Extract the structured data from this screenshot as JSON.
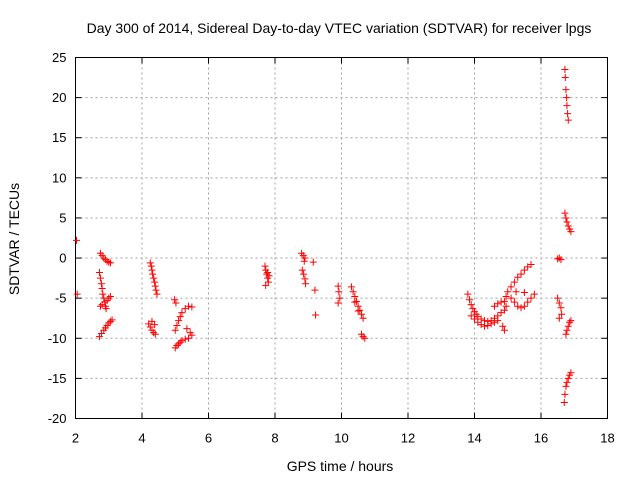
{
  "chart_data": {
    "type": "scatter",
    "title": "Day 300 of 2014, Sidereal Day-to-day VTEC variation (SDTVAR) for receiver lpgs",
    "xlabel": "GPS time / hours",
    "ylabel": "SDTVAR / TECUs",
    "xlim": [
      2,
      18
    ],
    "ylim": [
      -20,
      25
    ],
    "xticks": [
      2,
      4,
      6,
      8,
      10,
      12,
      14,
      16,
      18
    ],
    "yticks": [
      -20,
      -15,
      -10,
      -5,
      0,
      5,
      10,
      15,
      20,
      25
    ],
    "grid": true,
    "marker": "+",
    "marker_color": "#ff0000",
    "series": [
      {
        "name": "SDTVAR",
        "points": [
          [
            2.03,
            2.2
          ],
          [
            2.05,
            -4.5
          ],
          [
            2.75,
            0.6
          ],
          [
            2.8,
            0.3
          ],
          [
            2.85,
            0.0
          ],
          [
            2.9,
            -0.2
          ],
          [
            2.95,
            -0.4
          ],
          [
            3.0,
            -0.5
          ],
          [
            3.05,
            -0.6
          ],
          [
            2.72,
            -1.8
          ],
          [
            2.75,
            -2.5
          ],
          [
            2.78,
            -3.2
          ],
          [
            2.8,
            -3.8
          ],
          [
            2.82,
            -4.5
          ],
          [
            2.85,
            -5.0
          ],
          [
            2.88,
            -5.5
          ],
          [
            2.9,
            -6.0
          ],
          [
            2.92,
            -6.3
          ],
          [
            2.75,
            -6.0
          ],
          [
            2.8,
            -5.8
          ],
          [
            2.95,
            -5.3
          ],
          [
            3.0,
            -5.0
          ],
          [
            3.05,
            -4.8
          ],
          [
            2.72,
            -9.8
          ],
          [
            2.78,
            -9.4
          ],
          [
            2.85,
            -9.0
          ],
          [
            2.9,
            -8.7
          ],
          [
            2.95,
            -8.4
          ],
          [
            3.0,
            -8.1
          ],
          [
            3.05,
            -7.9
          ],
          [
            3.1,
            -7.7
          ],
          [
            4.25,
            -0.6
          ],
          [
            4.28,
            -1.0
          ],
          [
            4.3,
            -1.5
          ],
          [
            4.32,
            -2.0
          ],
          [
            4.35,
            -2.5
          ],
          [
            4.38,
            -3.0
          ],
          [
            4.4,
            -3.5
          ],
          [
            4.42,
            -4.0
          ],
          [
            4.45,
            -4.5
          ],
          [
            4.2,
            -8.2
          ],
          [
            4.25,
            -8.6
          ],
          [
            4.3,
            -9.0
          ],
          [
            4.35,
            -9.3
          ],
          [
            4.4,
            -9.5
          ],
          [
            4.3,
            -7.9
          ],
          [
            4.38,
            -8.3
          ],
          [
            4.98,
            -5.2
          ],
          [
            5.02,
            -5.6
          ],
          [
            5.0,
            -11.2
          ],
          [
            5.05,
            -10.9
          ],
          [
            5.1,
            -10.7
          ],
          [
            5.15,
            -10.5
          ],
          [
            5.2,
            -10.3
          ],
          [
            5.3,
            -10.1
          ],
          [
            5.4,
            -10.0
          ],
          [
            5.0,
            -9.0
          ],
          [
            5.05,
            -8.4
          ],
          [
            5.1,
            -7.8
          ],
          [
            5.15,
            -7.3
          ],
          [
            5.2,
            -6.8
          ],
          [
            5.3,
            -6.3
          ],
          [
            5.4,
            -6.0
          ],
          [
            5.5,
            -6.1
          ],
          [
            5.35,
            -8.8
          ],
          [
            5.45,
            -9.3
          ],
          [
            5.5,
            -9.6
          ],
          [
            7.7,
            -1.0
          ],
          [
            7.72,
            -1.5
          ],
          [
            7.75,
            -2.0
          ],
          [
            7.78,
            -2.5
          ],
          [
            7.8,
            -3.0
          ],
          [
            7.72,
            -3.4
          ],
          [
            7.78,
            -1.8
          ],
          [
            7.82,
            -2.2
          ],
          [
            8.8,
            0.6
          ],
          [
            8.85,
            0.3
          ],
          [
            8.9,
            0.0
          ],
          [
            8.88,
            -0.4
          ],
          [
            8.82,
            -1.5
          ],
          [
            8.86,
            -2.0
          ],
          [
            8.9,
            -2.6
          ],
          [
            8.92,
            -3.2
          ],
          [
            9.15,
            -0.5
          ],
          [
            9.2,
            -4.0
          ],
          [
            9.22,
            -7.1
          ],
          [
            9.9,
            -3.5
          ],
          [
            9.92,
            -4.2
          ],
          [
            9.95,
            -5.0
          ],
          [
            9.9,
            -5.6
          ],
          [
            10.3,
            -3.6
          ],
          [
            10.35,
            -4.2
          ],
          [
            10.4,
            -4.8
          ],
          [
            10.45,
            -5.4
          ],
          [
            10.5,
            -6.0
          ],
          [
            10.55,
            -6.5
          ],
          [
            10.6,
            -7.0
          ],
          [
            10.65,
            -7.5
          ],
          [
            10.4,
            -5.5
          ],
          [
            10.5,
            -6.6
          ],
          [
            10.6,
            -9.5
          ],
          [
            10.65,
            -9.8
          ],
          [
            10.7,
            -10.0
          ],
          [
            13.8,
            -4.5
          ],
          [
            13.85,
            -5.2
          ],
          [
            13.9,
            -5.8
          ],
          [
            13.95,
            -6.3
          ],
          [
            14.0,
            -6.7
          ],
          [
            14.05,
            -7.0
          ],
          [
            14.1,
            -7.3
          ],
          [
            14.2,
            -7.6
          ],
          [
            14.3,
            -7.8
          ],
          [
            14.4,
            -7.9
          ],
          [
            14.5,
            -7.8
          ],
          [
            14.6,
            -7.5
          ],
          [
            14.7,
            -7.2
          ],
          [
            14.8,
            -6.8
          ],
          [
            14.9,
            -6.5
          ],
          [
            13.9,
            -7.2
          ],
          [
            14.0,
            -7.6
          ],
          [
            14.1,
            -8.0
          ],
          [
            14.2,
            -8.3
          ],
          [
            14.3,
            -8.5
          ],
          [
            14.4,
            -8.4
          ],
          [
            14.5,
            -8.2
          ],
          [
            14.6,
            -8.0
          ],
          [
            14.7,
            -7.8
          ],
          [
            14.6,
            -6.0
          ],
          [
            14.7,
            -5.7
          ],
          [
            14.8,
            -5.5
          ],
          [
            14.9,
            -5.4
          ],
          [
            14.95,
            -6.0
          ],
          [
            14.85,
            -8.5
          ],
          [
            14.9,
            -9.0
          ],
          [
            14.95,
            -4.8
          ],
          [
            15.0,
            -4.2
          ],
          [
            15.1,
            -3.6
          ],
          [
            15.2,
            -3.0
          ],
          [
            15.3,
            -2.4
          ],
          [
            15.4,
            -2.0
          ],
          [
            15.5,
            -1.5
          ],
          [
            15.6,
            -1.1
          ],
          [
            15.7,
            -0.8
          ],
          [
            15.1,
            -5.0
          ],
          [
            15.2,
            -5.5
          ],
          [
            15.3,
            -6.0
          ],
          [
            15.4,
            -6.2
          ],
          [
            15.5,
            -6.0
          ],
          [
            15.6,
            -5.5
          ],
          [
            15.7,
            -5.0
          ],
          [
            15.8,
            -4.5
          ],
          [
            15.25,
            -4.2
          ],
          [
            15.5,
            -4.3
          ],
          [
            16.5,
            -0.1
          ],
          [
            16.55,
            0.0
          ],
          [
            16.6,
            -0.2
          ],
          [
            16.5,
            -5.0
          ],
          [
            16.55,
            -5.6
          ],
          [
            16.6,
            -6.2
          ],
          [
            16.62,
            -7.0
          ],
          [
            16.55,
            -7.5
          ],
          [
            16.72,
            23.5
          ],
          [
            16.73,
            22.5
          ],
          [
            16.75,
            21.0
          ],
          [
            16.77,
            20.0
          ],
          [
            16.78,
            19.0
          ],
          [
            16.8,
            18.0
          ],
          [
            16.82,
            17.2
          ],
          [
            16.72,
            5.6
          ],
          [
            16.75,
            5.0
          ],
          [
            16.78,
            4.5
          ],
          [
            16.82,
            4.0
          ],
          [
            16.86,
            3.6
          ],
          [
            16.9,
            3.3
          ],
          [
            16.75,
            -9.5
          ],
          [
            16.78,
            -9.0
          ],
          [
            16.82,
            -8.5
          ],
          [
            16.86,
            -8.0
          ],
          [
            16.9,
            -7.8
          ],
          [
            16.7,
            -18.0
          ],
          [
            16.72,
            -17.0
          ],
          [
            16.75,
            -16.0
          ],
          [
            16.78,
            -15.5
          ],
          [
            16.82,
            -15.0
          ],
          [
            16.86,
            -14.6
          ],
          [
            16.9,
            -14.3
          ]
        ]
      }
    ]
  }
}
